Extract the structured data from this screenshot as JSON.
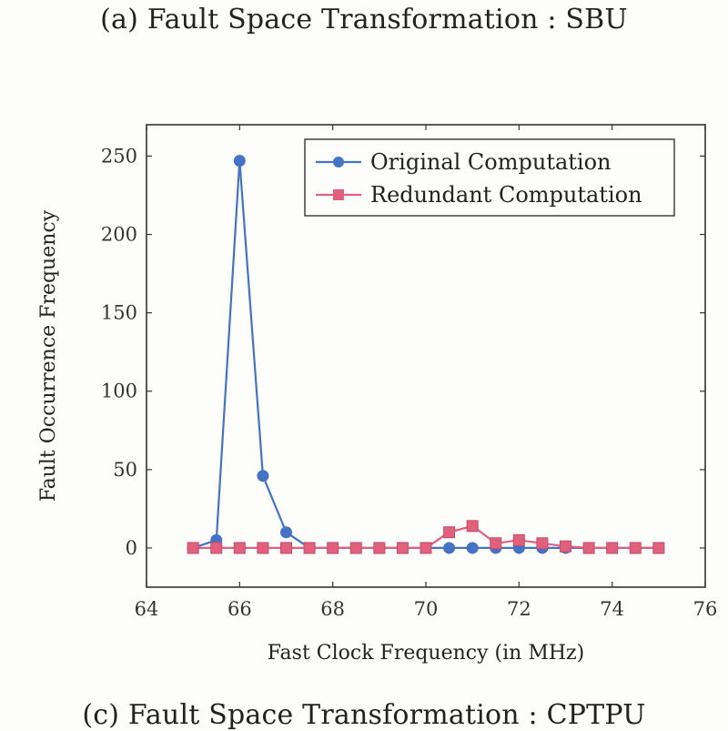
{
  "page": {
    "title": "(a) Fault Space Transformation : SBU",
    "bottom_caption": "(c) Fault Space Transformation : CPTPU"
  },
  "chart_data": {
    "type": "line",
    "title": "(a) Fault Space Transformation : SBU",
    "xlabel": "Fast Clock Frequency (in MHz)",
    "ylabel": "Fault Occurrence Frequency",
    "xlim": [
      64,
      76
    ],
    "ylim": [
      -25,
      270
    ],
    "xticks": [
      64,
      66,
      68,
      70,
      72,
      74,
      76
    ],
    "yticks": [
      0,
      50,
      100,
      150,
      200,
      250
    ],
    "grid": false,
    "legend_position": "top-right",
    "series": [
      {
        "name": "Original Computation",
        "color": "#4472c4",
        "marker": "circle",
        "x": [
          65,
          65.5,
          66,
          66.5,
          67,
          67.5,
          68,
          68.5,
          69,
          69.5,
          70,
          70.5,
          71,
          71.5,
          72,
          72.5,
          73,
          73.5,
          74,
          74.5,
          75
        ],
        "y": [
          0,
          5,
          247,
          46,
          10,
          0,
          0,
          0,
          0,
          0,
          0,
          0,
          0,
          0,
          0,
          0,
          0,
          0,
          0,
          0,
          0
        ]
      },
      {
        "name": "Redundant Computation",
        "color": "#e0607e",
        "marker": "square",
        "x": [
          65,
          65.5,
          66,
          66.5,
          67,
          67.5,
          68,
          68.5,
          69,
          69.5,
          70,
          70.5,
          71,
          71.5,
          72,
          72.5,
          73,
          73.5,
          74,
          74.5,
          75
        ],
        "y": [
          0,
          0,
          0,
          0,
          0,
          0,
          0,
          0,
          0,
          0,
          0,
          10,
          14,
          3,
          5,
          3,
          1,
          0,
          0,
          0,
          0
        ]
      }
    ]
  }
}
